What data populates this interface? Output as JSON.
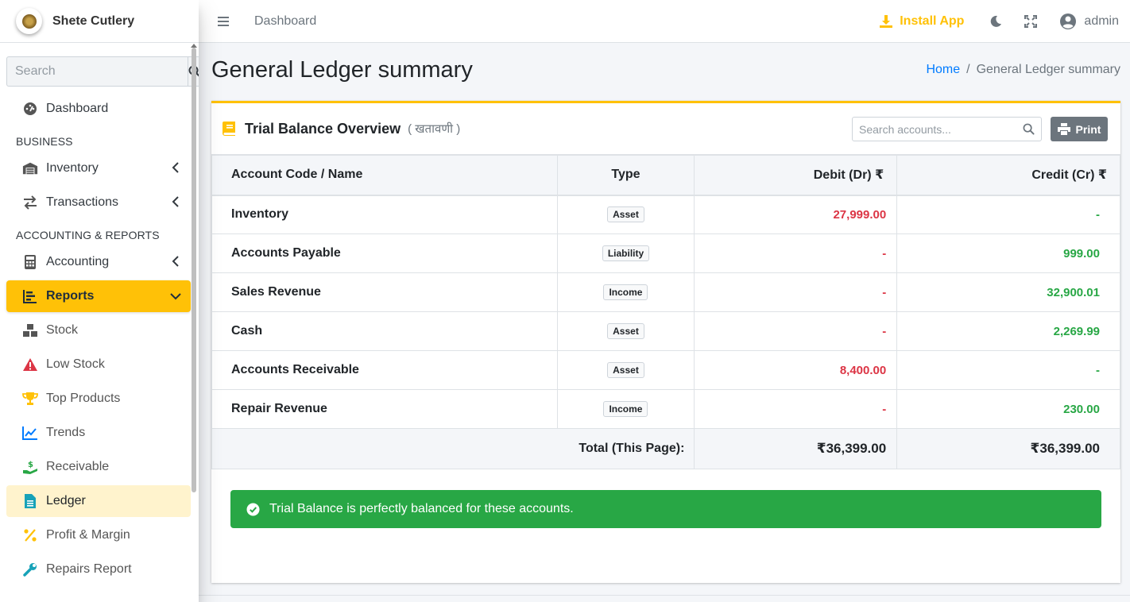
{
  "brand": {
    "name": "Shete Cutlery"
  },
  "sidebar": {
    "search_placeholder": "Search",
    "items": [
      {
        "label": "Dashboard"
      },
      {
        "header": "BUSINESS"
      },
      {
        "label": "Inventory"
      },
      {
        "label": "Transactions"
      },
      {
        "header": "ACCOUNTING & REPORTS"
      },
      {
        "label": "Accounting"
      },
      {
        "label": "Reports"
      },
      {
        "label": "Stock"
      },
      {
        "label": "Low Stock"
      },
      {
        "label": "Top Products"
      },
      {
        "label": "Trends"
      },
      {
        "label": "Receivable"
      },
      {
        "label": "Ledger"
      },
      {
        "label": "Profit & Margin"
      },
      {
        "label": "Repairs Report"
      }
    ]
  },
  "topbar": {
    "nav_link": "Dashboard",
    "install_label": "Install App",
    "user_name": "admin"
  },
  "page": {
    "title": "General Ledger summary",
    "breadcrumb": {
      "home": "Home",
      "separator": "/",
      "current": "General Ledger summary"
    }
  },
  "card": {
    "title": "Trial Balance Overview",
    "subtitle": "( खतावणी )",
    "search_placeholder": "Search accounts...",
    "print_label": "Print"
  },
  "table": {
    "headers": [
      "Account Code / Name",
      "Type",
      "Debit (Dr) ₹",
      "Credit (Cr) ₹"
    ],
    "rows": [
      {
        "name": "Inventory",
        "type": "Asset",
        "debit": "27,999.00",
        "credit": "-"
      },
      {
        "name": "Accounts Payable",
        "type": "Liability",
        "debit": "-",
        "credit": "999.00"
      },
      {
        "name": "Sales Revenue",
        "type": "Income",
        "debit": "-",
        "credit": "32,900.01"
      },
      {
        "name": "Cash",
        "type": "Asset",
        "debit": "-",
        "credit": "2,269.99"
      },
      {
        "name": "Accounts Receivable",
        "type": "Asset",
        "debit": "8,400.00",
        "credit": "-"
      },
      {
        "name": "Repair Revenue",
        "type": "Income",
        "debit": "-",
        "credit": "230.00"
      }
    ],
    "total_label": "Total (This Page):",
    "total_debit": "₹36,399.00",
    "total_credit": "₹36,399.00"
  },
  "alert": {
    "message": "Trial Balance is perfectly balanced for these accounts."
  },
  "colors": {
    "accent": "#ffc107",
    "debit": "#dc3545",
    "credit": "#28a745",
    "success": "#28a745",
    "link": "#007bff"
  }
}
